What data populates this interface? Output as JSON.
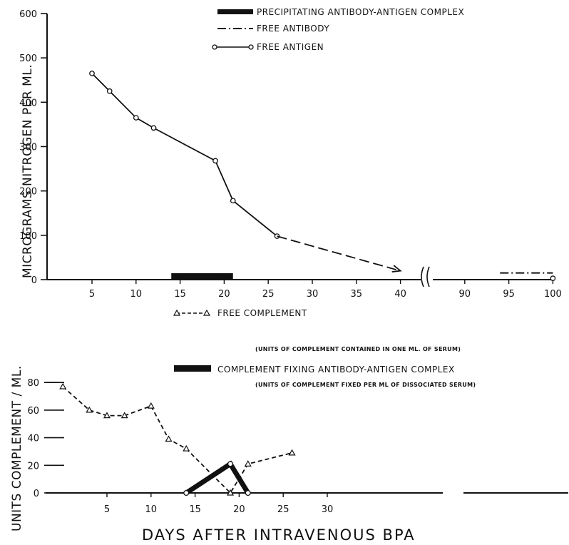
{
  "chart_data": [
    {
      "type": "line",
      "ylabel": "MICROGRAMS NITROGEN PER ML.",
      "ylim": [
        0,
        600
      ],
      "y_ticks": [
        "0",
        "100",
        "200",
        "300",
        "400",
        "500",
        "600"
      ],
      "x_ticks": [
        "5",
        "10",
        "15",
        "20",
        "25",
        "30",
        "35",
        "40",
        "90",
        "95",
        "100"
      ],
      "legend": {
        "precipitating": "PRECIPITATING ANTIBODY-ANTIGEN COMPLEX",
        "free_antibody": "FREE ANTIBODY",
        "free_antigen": "FREE ANTIGEN"
      },
      "series": [
        {
          "name": "FREE ANTIGEN",
          "x": [
            5,
            7,
            10,
            12,
            19,
            21,
            26
          ],
          "y": [
            465,
            425,
            365,
            342,
            268,
            178,
            98
          ]
        },
        {
          "name": "PRECIPITATING ANTIBODY-ANTIGEN COMPLEX",
          "x_range": [
            14,
            21
          ],
          "y": 8
        },
        {
          "name": "FREE ANTIBODY",
          "x_range": [
            94,
            100
          ],
          "y": 15
        }
      ],
      "trend_to": {
        "x": 40,
        "y": 20
      },
      "endpoint": {
        "x": 100,
        "y": 3
      }
    },
    {
      "type": "line",
      "ylabel": "UNITS COMPLEMENT / ML.",
      "xlabel": "DAYS AFTER INTRAVENOUS BPA",
      "ylim": [
        0,
        80
      ],
      "y_ticks": [
        "0",
        "20",
        "40",
        "60",
        "80"
      ],
      "x_ticks": [
        "5",
        "10",
        "15",
        "20",
        "25",
        "30"
      ],
      "legend": {
        "free_complement": "FREE COMPLEMENT",
        "free_complement_note": "(UNITS OF COMPLEMENT CONTAINED IN ONE ML. OF SERUM)",
        "fixing_complex": "COMPLEMENT FIXING ANTIBODY-ANTIGEN COMPLEX",
        "fixing_complex_note": "(UNITS OF COMPLEMENT FIXED PER ML OF DISSOCIATED SERUM)"
      },
      "series": [
        {
          "name": "FREE COMPLEMENT",
          "x": [
            0,
            3,
            5,
            7,
            10,
            12,
            14,
            19,
            21,
            26
          ],
          "y": [
            77,
            60,
            56,
            56,
            63,
            39,
            32,
            0,
            21,
            29
          ]
        },
        {
          "name": "COMPLEMENT FIXING ANTIBODY-ANTIGEN COMPLEX",
          "x": [
            14,
            19,
            21
          ],
          "y": [
            0,
            21,
            0
          ]
        }
      ]
    }
  ]
}
